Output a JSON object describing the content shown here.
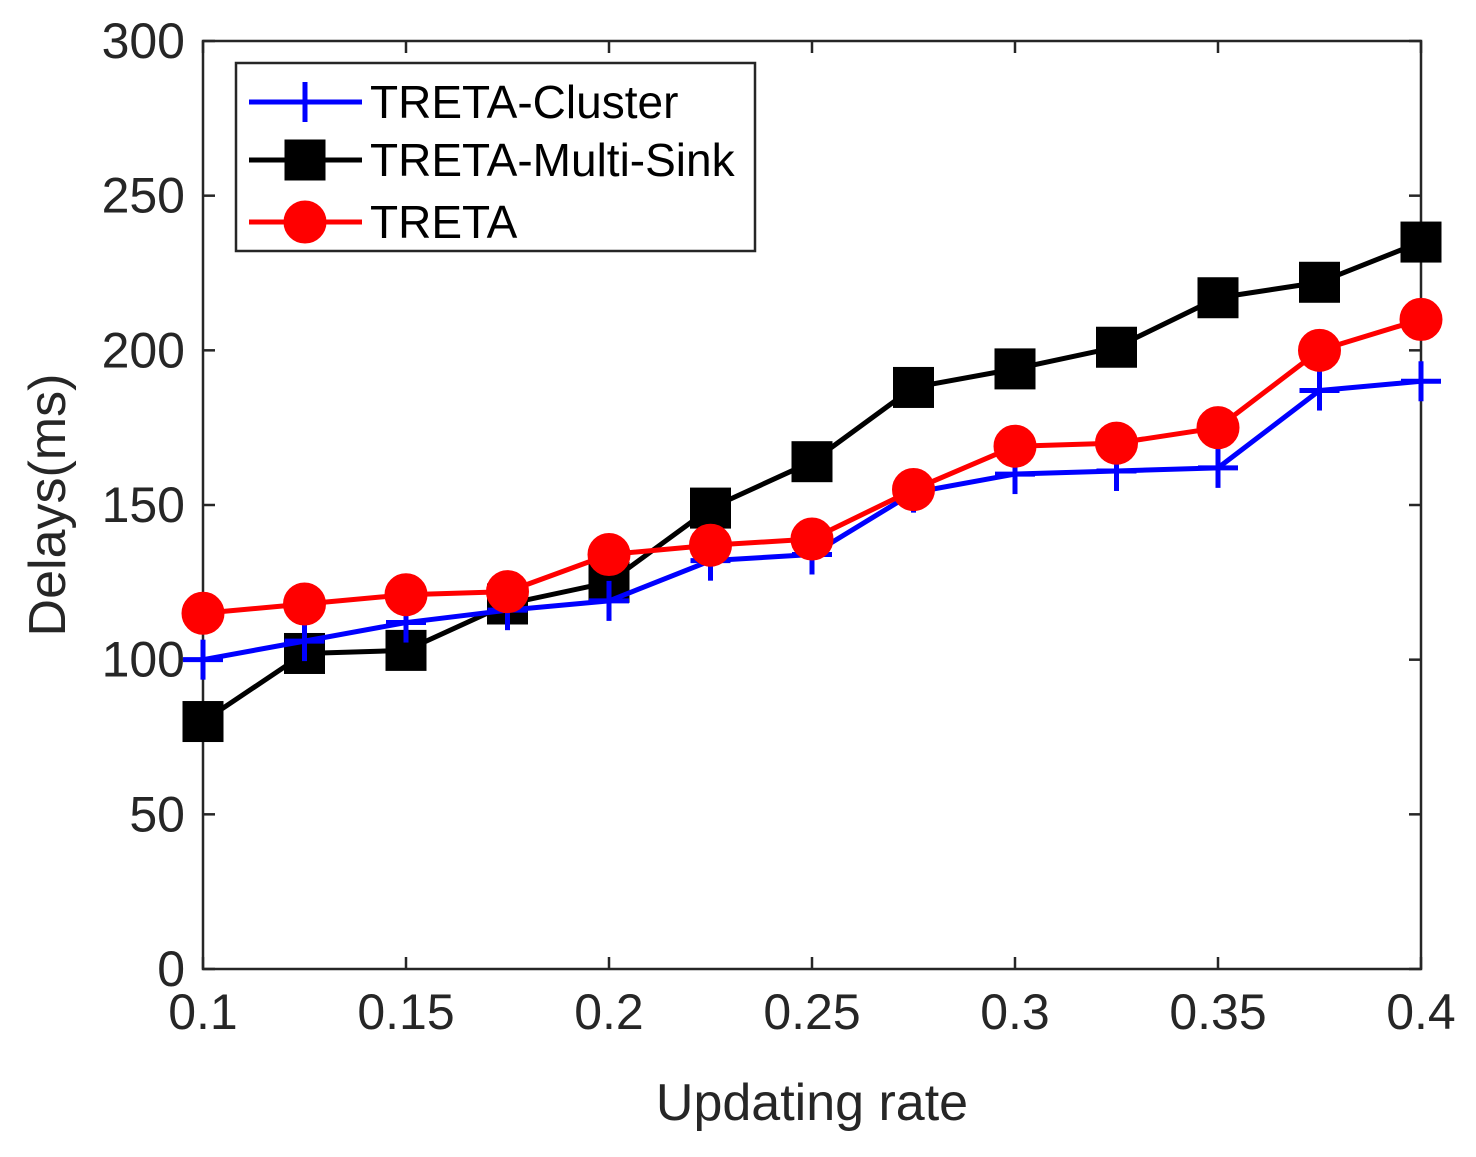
{
  "chart_data": {
    "type": "line",
    "title": "",
    "xlabel": "Updating rate",
    "ylabel": "Delays(ms)",
    "xlim": [
      0.1,
      0.4
    ],
    "ylim": [
      0,
      300
    ],
    "xticks": [
      0.1,
      0.15,
      0.2,
      0.25,
      0.3,
      0.35,
      0.4
    ],
    "xtick_labels": [
      "0.1",
      "0.15",
      "0.2",
      "0.25",
      "0.3",
      "0.35",
      "0.4"
    ],
    "yticks": [
      0,
      50,
      100,
      150,
      200,
      250,
      300
    ],
    "ytick_labels": [
      "0",
      "50",
      "100",
      "150",
      "200",
      "250",
      "300"
    ],
    "grid": false,
    "legend_position": "top-left",
    "x": [
      0.1,
      0.125,
      0.15,
      0.175,
      0.2,
      0.225,
      0.25,
      0.275,
      0.3,
      0.325,
      0.35,
      0.375,
      0.4
    ],
    "series": [
      {
        "name": "TRETA-Cluster",
        "color": "#0000ff",
        "marker": "plus",
        "values": [
          100,
          106,
          112,
          116,
          119,
          132,
          134,
          154,
          160,
          161,
          162,
          187,
          190
        ]
      },
      {
        "name": "TRETA-Multi-Sink",
        "color": "#000000",
        "marker": "square",
        "values": [
          80,
          102,
          103,
          118,
          125,
          149,
          164,
          188,
          194,
          201,
          217,
          222,
          235
        ]
      },
      {
        "name": "TRETA",
        "color": "#ff0000",
        "marker": "circle",
        "values": [
          115,
          118,
          121,
          122,
          134,
          137,
          139,
          155,
          169,
          170,
          175,
          200,
          210
        ]
      }
    ]
  }
}
